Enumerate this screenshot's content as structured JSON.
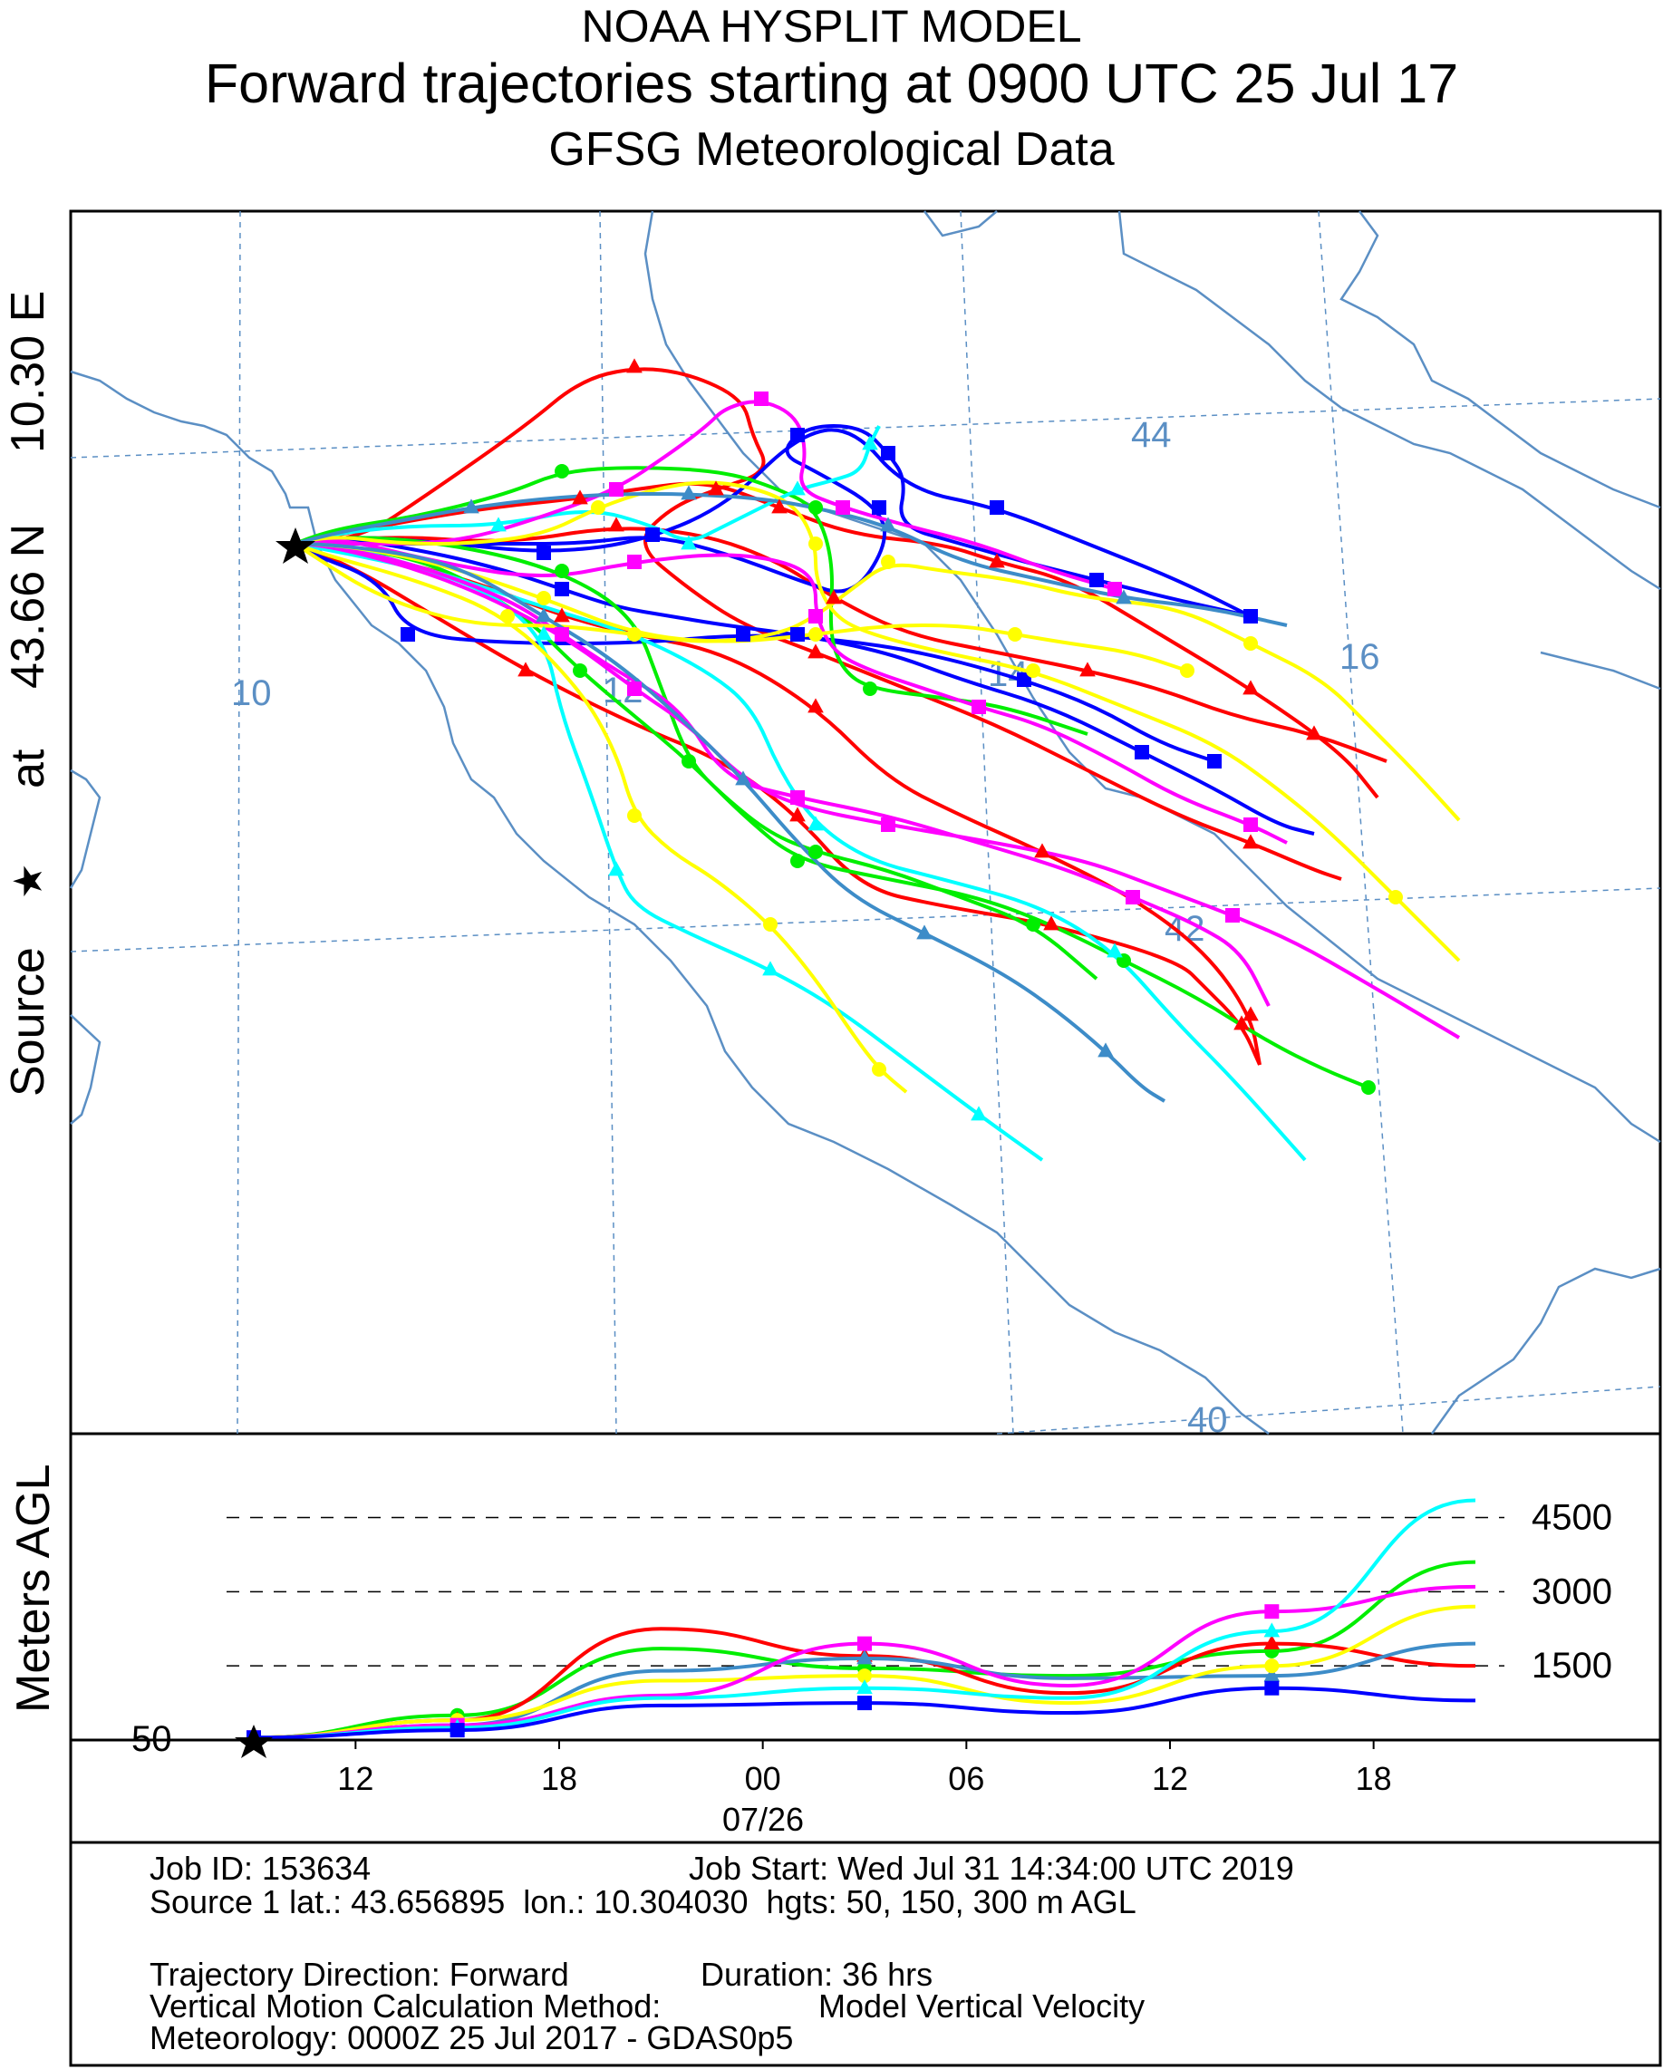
{
  "header": {
    "title": "NOAA HYSPLIT MODEL",
    "subtitle": "Forward trajectories starting at 0900 UTC 25 Jul 17",
    "data_source": "GFSG Meteorological Data"
  },
  "map": {
    "side_label": {
      "prefix": "Source",
      "at": "at",
      "lat": "43.66 N",
      "lon": "10.30 E"
    },
    "grid_labels": [
      "10",
      "12",
      "14",
      "16",
      "44",
      "42",
      "40"
    ]
  },
  "colors": {
    "coast": "#5b8fc4",
    "grid": "#5b8fc4",
    "series": [
      "#ff0000",
      "#0000ff",
      "#00ee00",
      "#00ffff",
      "#ff00ff",
      "#ffff00",
      "#3d8cc8"
    ]
  },
  "chart_data": {
    "type": "line",
    "title": "Forward trajectories starting at 0900 UTC 25 Jul 17",
    "ylabel": "Meters AGL",
    "source_height_label": "50",
    "height_reference_lines": [
      "4500",
      "3000",
      "1500"
    ],
    "time_ticks": [
      "12",
      "18",
      "00",
      "06",
      "12",
      "18"
    ],
    "date_label": "07/26",
    "time_hours_since_start": [
      0,
      6,
      12,
      18,
      24,
      30,
      36
    ],
    "height_series": [
      {
        "color": "#00ee00",
        "values": [
          50,
          500,
          1850,
          1450,
          1300,
          1800,
          3600
        ]
      },
      {
        "color": "#ff0000",
        "values": [
          50,
          400,
          2250,
          1700,
          950,
          1950,
          1500
        ]
      },
      {
        "color": "#3d8cc8",
        "values": [
          50,
          300,
          1400,
          1650,
          1250,
          1300,
          1950
        ]
      },
      {
        "color": "#ffff00",
        "values": [
          50,
          400,
          1200,
          1300,
          750,
          1500,
          2700
        ]
      },
      {
        "color": "#ff00ff",
        "values": [
          50,
          300,
          900,
          1950,
          1100,
          2600,
          3100
        ]
      },
      {
        "color": "#00ffff",
        "values": [
          50,
          250,
          850,
          1050,
          850,
          2200,
          4850
        ]
      },
      {
        "color": "#0000ff",
        "values": [
          50,
          200,
          700,
          750,
          550,
          1050,
          800
        ]
      }
    ]
  },
  "footer": {
    "job_id": "Job ID: 153634",
    "job_start": "Job Start: Wed Jul 31 14:34:00 UTC 2019",
    "source_line": "Source 1 lat.: 43.656895  lon.: 10.304030  hgts: 50, 150, 300 m AGL",
    "direction": "Trajectory Direction: Forward",
    "duration": "Duration: 36 hrs",
    "vertical_label": "Vertical Motion Calculation Method:",
    "vertical_value": "Model Vertical Velocity",
    "meteorology": "Meteorology: 0000Z 25 Jul 2017 - GDAS0p5"
  }
}
